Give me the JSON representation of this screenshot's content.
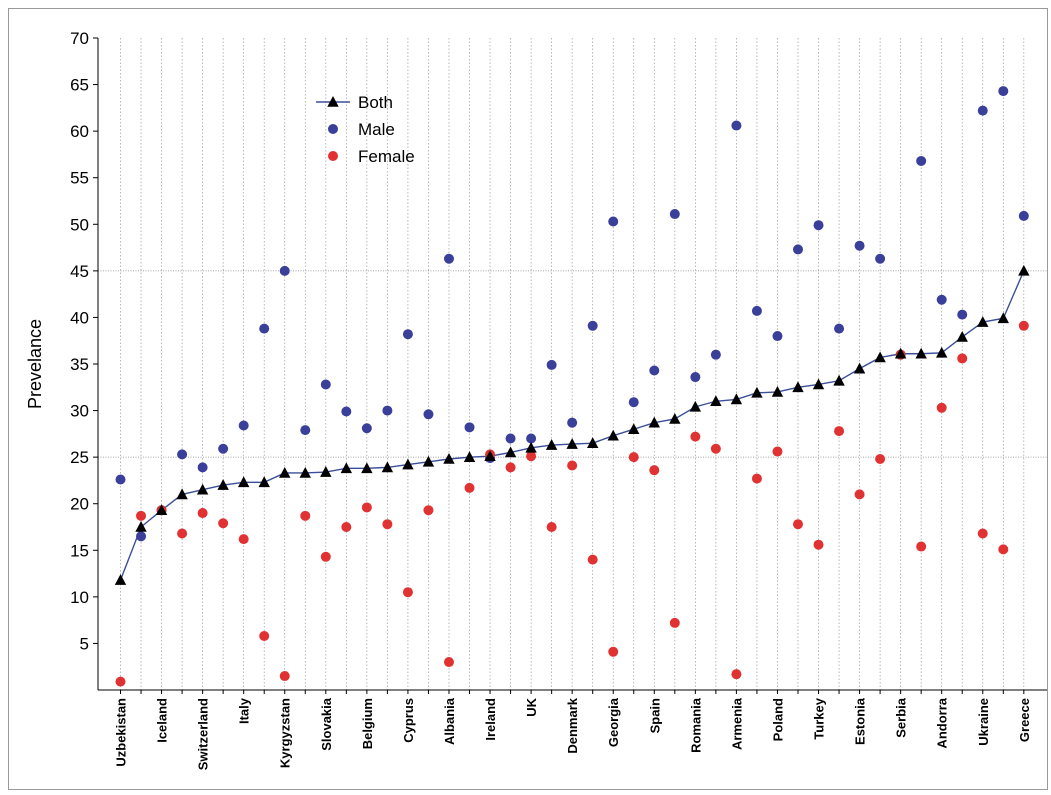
{
  "chart_data": {
    "type": "scatter",
    "title": "",
    "xlabel": "",
    "ylabel": "Prevelance",
    "ylim": [
      0,
      70
    ],
    "yticks": [
      5,
      10,
      15,
      20,
      25,
      30,
      35,
      40,
      45,
      50,
      55,
      60,
      65,
      70
    ],
    "grid": "vertical dotted lines at each country",
    "reference_lines": [
      25,
      45
    ],
    "legend_position": "top-left",
    "countries": [
      "Uzbekistan",
      "",
      "Iceland",
      "",
      "Switzerland",
      "",
      "Italy",
      "",
      "Kyrgyzstan",
      "",
      "Slovakia",
      "",
      "Belgium",
      "",
      "Cyprus",
      "",
      "Albania",
      "",
      "Ireland",
      "",
      "UK",
      "",
      "Denmark",
      "",
      "Georgia",
      "",
      "Spain",
      "",
      "Romania",
      "",
      "Armenia",
      "",
      "Poland",
      "",
      "Turkey",
      "",
      "Estonia",
      "",
      "Serbia",
      "",
      "Andorra",
      "",
      "Ukraine",
      "",
      "Greece"
    ],
    "series": [
      {
        "name": "Both",
        "marker": "triangle",
        "line": true,
        "color": "#000000",
        "line_color": "#3a4f9a",
        "values": [
          11.8,
          17.5,
          19.3,
          21,
          21.5,
          22,
          22.3,
          22.3,
          23.3,
          23.3,
          23.4,
          23.8,
          23.8,
          23.9,
          24.2,
          24.5,
          24.8,
          25,
          25.1,
          25.5,
          26,
          26.3,
          26.4,
          26.5,
          27.3,
          28,
          28.7,
          29.1,
          30.4,
          31,
          31.2,
          31.9,
          32,
          32.5,
          32.8,
          33.2,
          34.5,
          35.7,
          36.1,
          36.1,
          36.2,
          37.9,
          39.5,
          39.9,
          45
        ]
      },
      {
        "name": "Male",
        "marker": "circle",
        "line": false,
        "color": "#3a3f9a",
        "values": [
          22.6,
          16.5,
          19.3,
          25.3,
          23.9,
          25.9,
          28.4,
          38.8,
          45,
          27.9,
          32.8,
          29.9,
          28.1,
          30,
          38.2,
          29.6,
          46.3,
          28.2,
          24.9,
          27,
          27,
          34.9,
          28.7,
          39.1,
          50.3,
          30.9,
          34.3,
          51.1,
          33.6,
          36,
          60.6,
          40.7,
          38,
          47.3,
          49.9,
          38.8,
          47.7,
          46.3,
          36,
          56.8,
          41.9,
          40.3,
          62.2,
          64.3,
          50.9
        ]
      },
      {
        "name": "Female",
        "marker": "circle",
        "line": false,
        "color": "#e03232",
        "values": [
          0.9,
          18.7,
          19.3,
          16.8,
          19,
          17.9,
          16.2,
          5.8,
          1.5,
          18.7,
          14.3,
          17.5,
          19.6,
          17.8,
          10.5,
          19.3,
          3,
          21.7,
          25.3,
          23.9,
          25.1,
          17.5,
          24.1,
          14,
          4.1,
          25,
          23.6,
          7.2,
          27.2,
          25.9,
          1.7,
          22.7,
          25.6,
          17.8,
          15.6,
          27.8,
          21,
          24.8,
          36,
          15.4,
          30.3,
          35.6,
          16.8,
          15.1,
          39.1
        ]
      }
    ]
  }
}
